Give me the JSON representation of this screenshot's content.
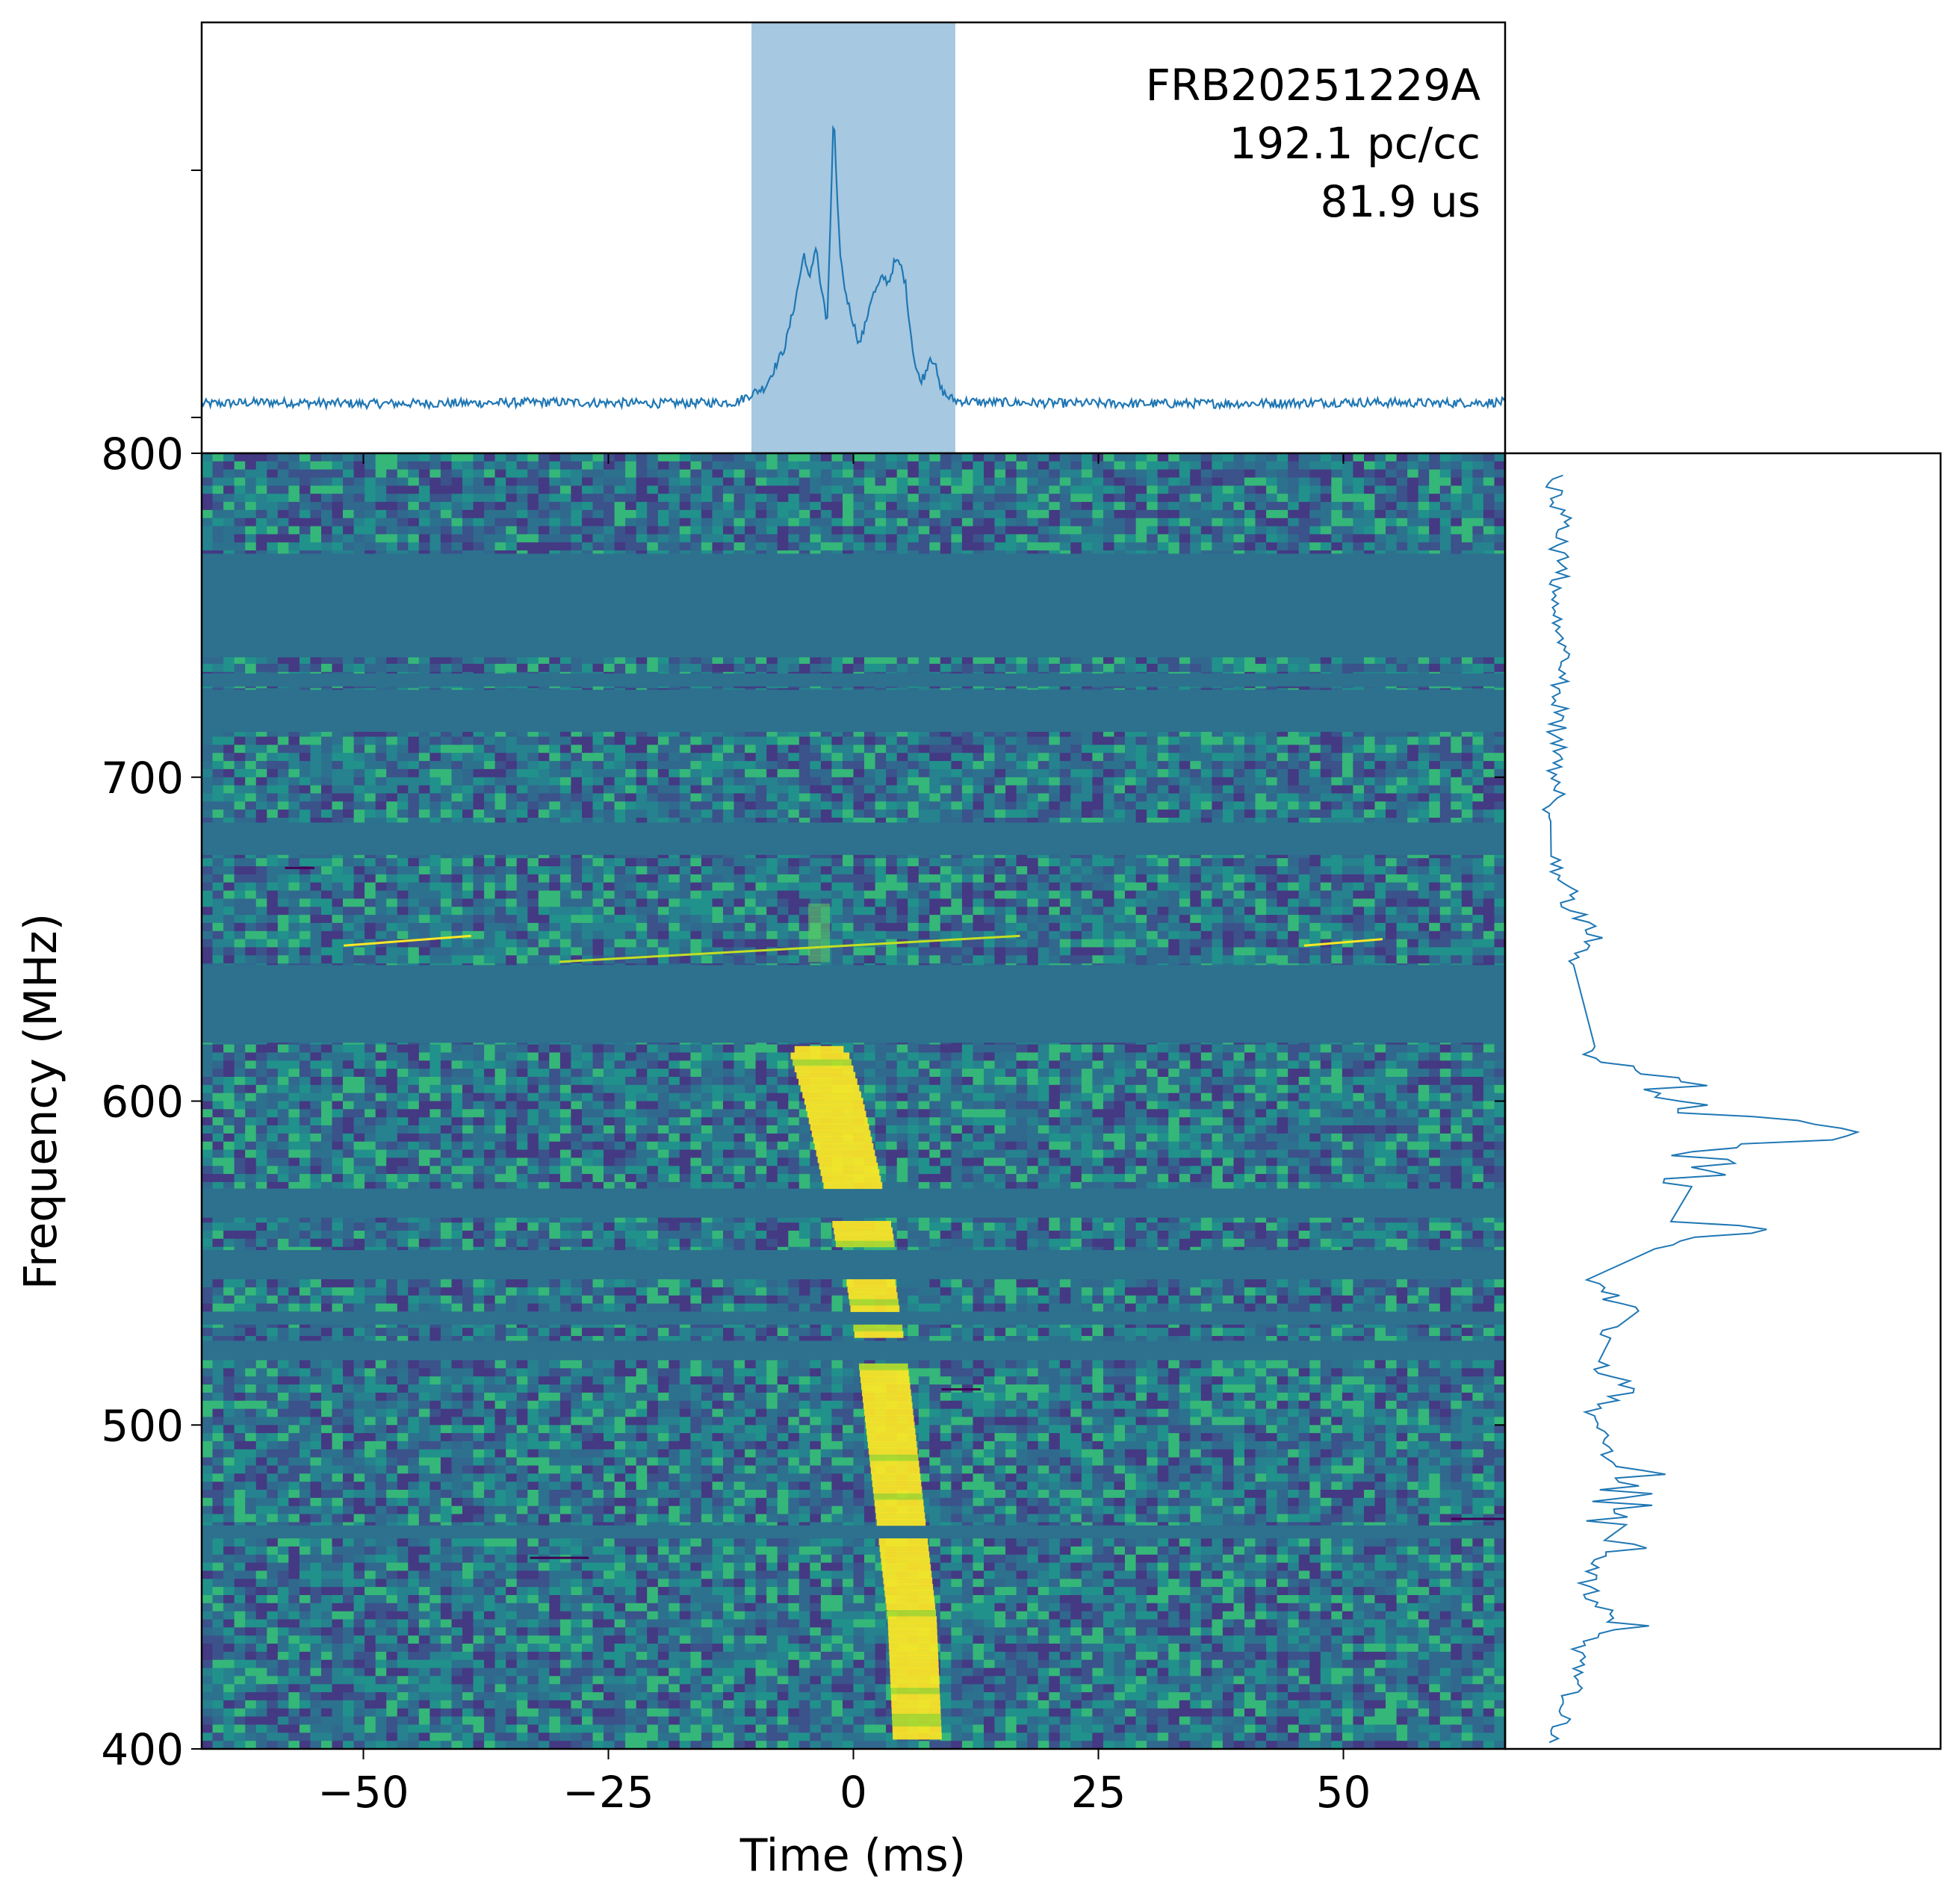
{
  "chart_data": [
    {
      "type": "line",
      "panel": "profile",
      "annotation": [
        "FRB20251229A",
        "192.1 pc/cc",
        "81.9 us"
      ],
      "xlim": [
        -66.5,
        66.5
      ],
      "shaded_region": [
        -10.4,
        10.4
      ],
      "x": [
        -66,
        -60,
        -50,
        -40,
        -30,
        -20,
        -12,
        -9,
        -7,
        -6,
        -5,
        -4.5,
        -3.8,
        -3.3,
        -3,
        -2.7,
        -2.3,
        -2,
        -1.7,
        -1.4,
        -1.0,
        -0.5,
        0,
        0.6,
        1.2,
        1.8,
        2.4,
        3,
        3.6,
        4.2,
        4.8,
        5.3,
        5.8,
        6.3,
        6.8,
        7.3,
        7.8,
        8.3,
        8.8,
        9.5,
        10.5,
        13,
        20,
        30,
        40,
        50,
        60,
        66
      ],
      "y": [
        0.035,
        0.04,
        0.035,
        0.037,
        0.04,
        0.036,
        0.04,
        0.09,
        0.22,
        0.36,
        0.53,
        0.43,
        0.56,
        0.4,
        0.38,
        0.26,
        0.68,
        1.0,
        0.72,
        0.55,
        0.43,
        0.36,
        0.3,
        0.23,
        0.29,
        0.38,
        0.41,
        0.45,
        0.43,
        0.5,
        0.49,
        0.43,
        0.28,
        0.16,
        0.11,
        0.13,
        0.19,
        0.17,
        0.09,
        0.06,
        0.045,
        0.04,
        0.037,
        0.035,
        0.036,
        0.04,
        0.037,
        0.04
      ]
    },
    {
      "type": "heatmap",
      "panel": "waterfall",
      "xlabel": "Time (ms)",
      "ylabel": "Frequency (MHz)",
      "xlim": [
        -66.5,
        66.5
      ],
      "ylim": [
        400,
        800
      ],
      "xticks": [
        -50,
        -25,
        0,
        25,
        50
      ],
      "xtick_labels": [
        "−50",
        "−25",
        "0",
        "25",
        "50"
      ],
      "yticks": [
        400,
        500,
        600,
        700,
        800
      ],
      "ytick_labels": [
        "400",
        "500",
        "600",
        "700",
        "800"
      ],
      "colormap": "viridis",
      "colors": {
        "masked": "#2d718e",
        "dark": "#3e3a8a",
        "mid": "#31688e",
        "bright": "#fde725",
        "green": "#5ec962"
      },
      "masked_bands_mhz": [
        [
          737,
          769
        ],
        [
          728,
          732
        ],
        [
          714,
          727
        ],
        [
          676,
          686
        ],
        [
          618,
          642
        ],
        [
          564,
          573
        ],
        [
          545,
          554
        ],
        [
          531,
          535
        ],
        [
          520,
          526
        ],
        [
          465,
          469
        ]
      ],
      "burst_track": {
        "time_ms": [
          -3.5,
          -2.0,
          1.0,
          3.0,
          4.5,
          6.0,
          6.5
        ],
        "freq_mhz": [
          615,
          600,
          560,
          520,
          480,
          440,
          405
        ]
      },
      "rfi_streaks": [
        {
          "t0": -52,
          "t1": -39,
          "f0": 648,
          "f1": 651,
          "color": "#fde725"
        },
        {
          "t0": -30,
          "t1": 17,
          "f0": 643,
          "f1": 651,
          "color": "#c2df23"
        },
        {
          "t0": 46,
          "t1": 54,
          "f0": 648,
          "f1": 650,
          "color": "#fde725"
        },
        {
          "t0": -58,
          "t1": -55,
          "f0": 672,
          "f1": 672,
          "color": "#440154"
        },
        {
          "t0": 9,
          "t1": 13,
          "f0": 511,
          "f1": 511,
          "color": "#440154"
        },
        {
          "t0": -33,
          "t1": -27,
          "f0": 459,
          "f1": 459,
          "color": "#440154"
        },
        {
          "t0": 61,
          "t1": 66.5,
          "f0": 471,
          "f1": 471,
          "color": "#440154"
        }
      ]
    },
    {
      "type": "line",
      "panel": "spectrum",
      "ylim": [
        400,
        800
      ],
      "freq": [
        402,
        410,
        418,
        426,
        432,
        438,
        444,
        452,
        458,
        466,
        474,
        482,
        490,
        498,
        504,
        510,
        516,
        522,
        528,
        536,
        540,
        548,
        556,
        560,
        564,
        572,
        578,
        584,
        590,
        596,
        600,
        606,
        612,
        616,
        644,
        648,
        652,
        656,
        660,
        666,
        670,
        690,
        694,
        700,
        706,
        712,
        718,
        730,
        770,
        778,
        786,
        794
      ],
      "power": [
        0.04,
        0.07,
        0.09,
        0.12,
        0.1,
        0.22,
        0.17,
        0.13,
        0.17,
        0.25,
        0.22,
        0.3,
        0.19,
        0.18,
        0.15,
        0.23,
        0.18,
        0.17,
        0.19,
        0.22,
        0.2,
        0.12,
        0.43,
        0.61,
        0.38,
        0.29,
        0.48,
        0.46,
        0.96,
        0.52,
        0.33,
        0.4,
        0.17,
        0.14,
        0.1,
        0.16,
        0.15,
        0.12,
        0.08,
        0.1,
        0.05,
        0.03,
        0.05,
        0.04,
        0.05,
        0.04,
        0.05,
        0.06,
        0.05,
        0.07,
        0.05,
        0.04
      ]
    }
  ]
}
